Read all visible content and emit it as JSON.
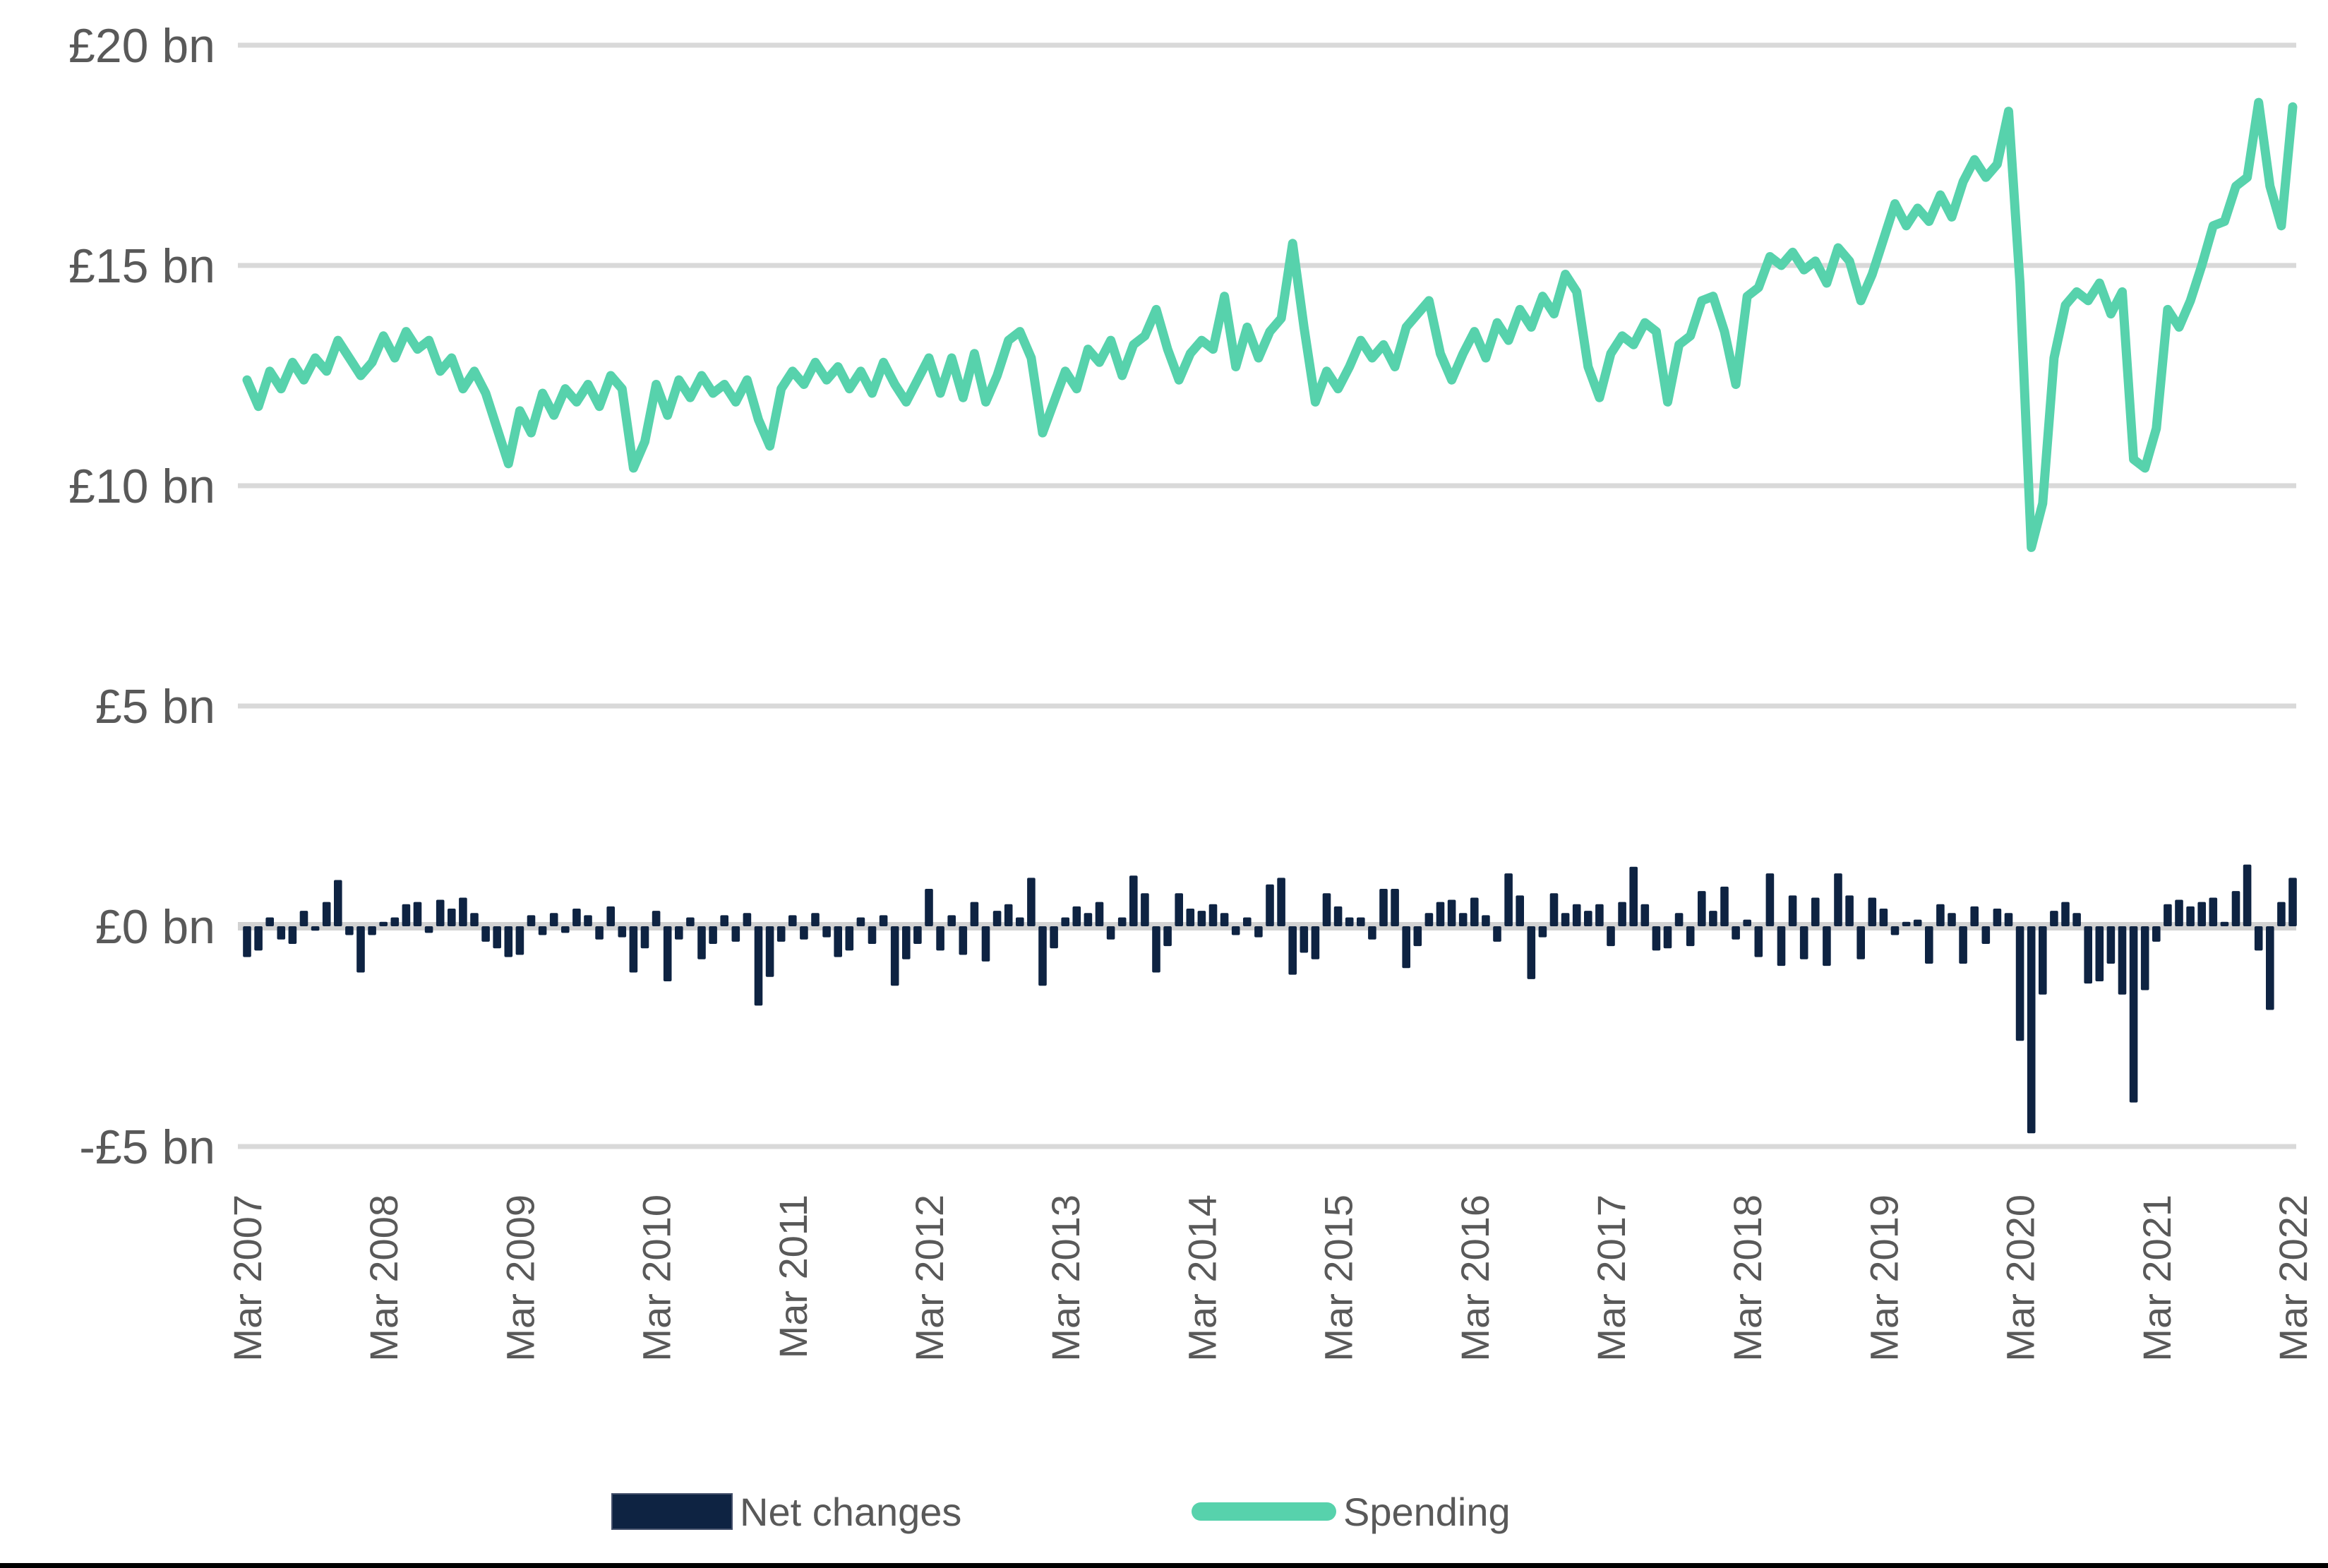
{
  "chart_data": {
    "type": "combo",
    "title": "",
    "xlabel": "",
    "ylabel": "",
    "frequency": "monthly",
    "x_range": [
      "Mar 2007",
      "Mar 2022"
    ],
    "x_tick_labels": [
      "Mar 2007",
      "Mar 2008",
      "Mar 2009",
      "Mar 2010",
      "Mar 2011",
      "Mar 2012",
      "Mar 2013",
      "Mar 2014",
      "Mar 2015",
      "Mar 2016",
      "Mar 2017",
      "Mar 2018",
      "Mar 2019",
      "Mar 2020",
      "Mar 2021",
      "Mar 2022"
    ],
    "y_tick_labels": [
      "£20 bn",
      "£15 bn",
      "£10 bn",
      "£5 bn",
      "£0 bn",
      "-£5 bn"
    ],
    "y_tick_values": [
      20,
      15,
      10,
      5,
      0,
      -5
    ],
    "ylim": [
      -5.5,
      20.6
    ],
    "grid": "horizontal",
    "legend_position": "bottom",
    "series": [
      {
        "name": "Net changes",
        "type": "bar",
        "color": "#0e2342",
        "values": [
          -0.7,
          -0.55,
          0.2,
          -0.3,
          -0.4,
          0.35,
          -0.1,
          0.55,
          1.05,
          -0.2,
          -1.05,
          -0.2,
          0.1,
          0.2,
          0.5,
          0.55,
          -0.15,
          0.6,
          0.4,
          0.65,
          0.3,
          -0.35,
          -0.5,
          -0.7,
          -0.65,
          0.25,
          -0.2,
          0.3,
          -0.15,
          0.4,
          0.25,
          -0.3,
          0.45,
          -0.25,
          -1.05,
          -0.5,
          0.35,
          -1.25,
          -0.3,
          0.2,
          -0.75,
          -0.4,
          0.25,
          -0.35,
          0.3,
          -1.8,
          -1.15,
          -0.35,
          0.25,
          -0.3,
          0.3,
          -0.25,
          -0.7,
          -0.55,
          0.2,
          -0.4,
          0.25,
          -1.35,
          -0.75,
          -0.4,
          0.85,
          -0.55,
          0.25,
          -0.65,
          0.55,
          -0.8,
          0.35,
          0.5,
          0.2,
          1.1,
          -1.35,
          -0.5,
          0.2,
          0.45,
          0.3,
          0.55,
          -0.3,
          0.2,
          1.15,
          0.75,
          -1.05,
          -0.45,
          0.75,
          0.4,
          0.35,
          0.5,
          0.3,
          -0.2,
          0.2,
          -0.25,
          0.95,
          1.1,
          -1.1,
          -0.6,
          -0.75,
          0.75,
          0.45,
          0.2,
          0.2,
          -0.3,
          0.85,
          0.85,
          -0.95,
          -0.45,
          0.3,
          0.55,
          0.6,
          0.3,
          0.65,
          0.25,
          -0.35,
          1.2,
          0.7,
          -1.2,
          -0.25,
          0.75,
          0.3,
          0.5,
          0.35,
          0.5,
          -0.45,
          0.55,
          1.35,
          0.5,
          -0.55,
          -0.5,
          0.3,
          -0.45,
          0.8,
          0.35,
          0.9,
          -0.3,
          0.15,
          -0.7,
          1.2,
          -0.9,
          0.7,
          -0.75,
          0.65,
          -0.9,
          1.2,
          0.7,
          -0.75,
          0.65,
          0.4,
          -0.2,
          0.1,
          0.15,
          -0.85,
          0.5,
          0.3,
          -0.85,
          0.45,
          -0.4,
          0.4,
          0.3,
          -2.6,
          -4.7,
          -1.55,
          0.35,
          0.55,
          0.3,
          -1.3,
          -1.25,
          -0.85,
          -1.55,
          -4.0,
          -1.45,
          -0.35,
          0.5,
          0.6,
          0.45,
          0.55,
          0.65,
          0.1,
          0.8,
          1.4,
          -0.55,
          -1.9,
          0.55,
          1.1
        ]
      },
      {
        "name": "Spending",
        "type": "line",
        "color": "#57d2ac",
        "values": [
          12.4,
          11.8,
          12.6,
          12.2,
          12.8,
          12.4,
          12.9,
          12.6,
          13.3,
          12.9,
          12.5,
          12.8,
          13.4,
          12.9,
          13.5,
          13.1,
          13.3,
          12.6,
          12.9,
          12.2,
          12.6,
          12.1,
          11.3,
          10.5,
          11.7,
          11.2,
          12.1,
          11.6,
          12.2,
          11.9,
          12.3,
          11.8,
          12.5,
          12.2,
          10.4,
          11.0,
          12.3,
          11.6,
          12.4,
          12.0,
          12.5,
          12.1,
          12.3,
          11.9,
          12.4,
          11.5,
          10.9,
          12.2,
          12.6,
          12.3,
          12.8,
          12.4,
          12.7,
          12.2,
          12.6,
          12.1,
          12.8,
          12.3,
          11.9,
          12.4,
          12.9,
          12.1,
          12.9,
          12.0,
          13.0,
          11.9,
          12.5,
          13.3,
          13.5,
          12.9,
          11.2,
          11.9,
          12.6,
          12.2,
          13.1,
          12.8,
          13.3,
          12.5,
          13.2,
          13.4,
          14.0,
          13.1,
          12.4,
          13.0,
          13.3,
          13.1,
          14.3,
          12.7,
          13.6,
          12.9,
          13.5,
          13.8,
          15.5,
          13.6,
          11.9,
          12.6,
          12.2,
          12.7,
          13.3,
          12.9,
          13.2,
          12.7,
          13.6,
          13.9,
          14.2,
          13.0,
          12.4,
          13.0,
          13.5,
          12.9,
          13.7,
          13.3,
          14.0,
          13.6,
          14.3,
          13.9,
          14.8,
          14.4,
          12.7,
          12.0,
          13.0,
          13.4,
          13.2,
          13.7,
          13.5,
          11.9,
          13.2,
          13.4,
          14.2,
          14.3,
          13.5,
          12.3,
          14.3,
          14.5,
          15.2,
          15.0,
          15.3,
          14.9,
          15.1,
          14.6,
          15.4,
          15.1,
          14.2,
          14.8,
          15.6,
          16.4,
          15.9,
          16.3,
          16.0,
          16.6,
          16.1,
          16.9,
          17.4,
          17.0,
          17.3,
          18.5,
          14.6,
          8.6,
          9.6,
          12.9,
          14.1,
          14.4,
          14.2,
          14.6,
          13.9,
          14.4,
          10.6,
          10.4,
          11.3,
          14.0,
          13.6,
          14.2,
          15.0,
          15.9,
          16.0,
          16.8,
          17.0,
          18.7,
          16.8,
          15.9,
          18.6
        ]
      }
    ]
  },
  "legend": {
    "net_changes_label": "Net changes",
    "spending_label": "Spending"
  },
  "colors": {
    "bar": "#0e2342",
    "line": "#57d2ac",
    "gridline": "#d9d9d9",
    "zero_axis": "#d2d2d2",
    "axis_text": "#595959",
    "bottom_border": "#000000"
  }
}
